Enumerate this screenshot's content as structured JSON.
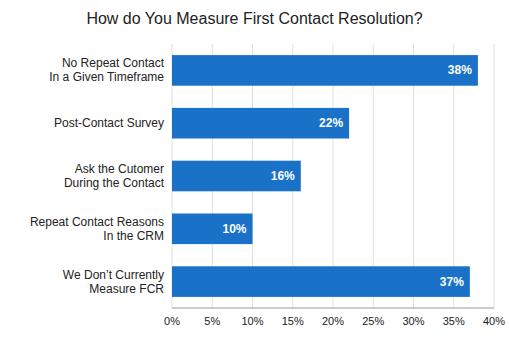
{
  "chart_data": {
    "type": "bar",
    "orientation": "horizontal",
    "title": "How do You Measure First Contact Resolution?",
    "categories": [
      "We Don’t Currently\nMeasure FCR",
      "Repeat Contact Reasons\nIn the CRM",
      "Ask the Cutomer\nDuring the Contact",
      "Post-Contact Survey",
      "No Repeat Contact\nIn a Given Timeframe"
    ],
    "values": [
      37,
      10,
      16,
      22,
      38
    ],
    "value_labels": [
      "37%",
      "10%",
      "16%",
      "22%",
      "38%"
    ],
    "data_labels": true,
    "color": "#1a72c8",
    "xlim": [
      0,
      40
    ],
    "xticks": [
      {
        "value": 0,
        "label": "0%"
      },
      {
        "value": 5,
        "label": "5%"
      },
      {
        "value": 10,
        "label": "10%"
      },
      {
        "value": 15,
        "label": "15%"
      },
      {
        "value": 20,
        "label": "20%"
      },
      {
        "value": 25,
        "label": "25%"
      },
      {
        "value": 30,
        "label": "30%"
      },
      {
        "value": 35,
        "label": "35%"
      },
      {
        "value": 40,
        "label": "40%"
      }
    ],
    "grid": true
  }
}
